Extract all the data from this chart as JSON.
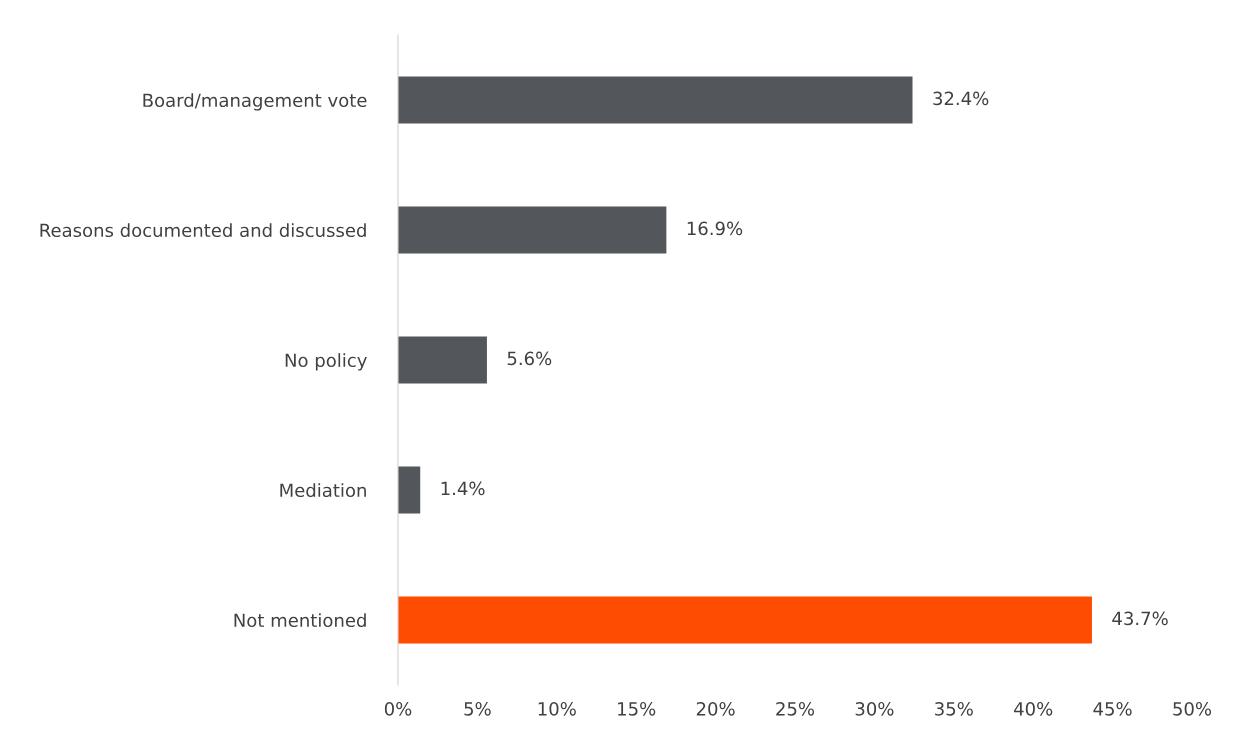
{
  "chart_data": {
    "type": "bar",
    "orientation": "horizontal",
    "categories": [
      "Board/management vote",
      "Reasons documented and discussed",
      "No policy",
      "Mediation",
      "Not mentioned"
    ],
    "values": [
      32.4,
      16.9,
      5.6,
      1.4,
      43.7
    ],
    "colors": [
      "#53565a",
      "#53565a",
      "#53565a",
      "#53565a",
      "#fe4c00"
    ],
    "value_labels": [
      "32.4%",
      "16.9%",
      "5.6%",
      "1.4%",
      "43.7%"
    ],
    "xlim": [
      0,
      50
    ],
    "xticks": [
      {
        "value": 0,
        "label": "0%"
      },
      {
        "value": 5,
        "label": "5%"
      },
      {
        "value": 10,
        "label": "10%"
      },
      {
        "value": 15,
        "label": "15%"
      },
      {
        "value": 20,
        "label": "20%"
      },
      {
        "value": 25,
        "label": "25%"
      },
      {
        "value": 30,
        "label": "30%"
      },
      {
        "value": 35,
        "label": "35%"
      },
      {
        "value": 40,
        "label": "40%"
      },
      {
        "value": 45,
        "label": "45%"
      },
      {
        "value": 50,
        "label": "50%"
      }
    ],
    "grid": false,
    "legend": false
  }
}
